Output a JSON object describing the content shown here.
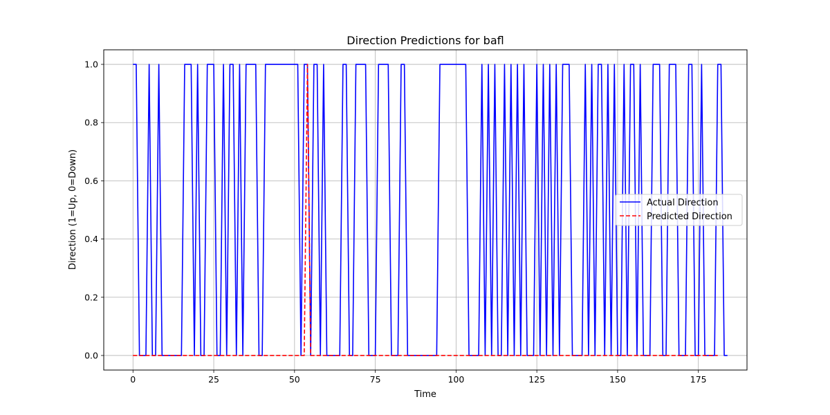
{
  "chart_data": {
    "type": "line",
    "title": "Direction Predictions for bafl",
    "xlabel": "Time",
    "ylabel": "Direction (1=Up, 0=Down)",
    "xlim": [
      -9.05,
      190.05
    ],
    "ylim": [
      -0.05,
      1.05
    ],
    "xticks": [
      0,
      25,
      50,
      75,
      100,
      125,
      150,
      175
    ],
    "yticks": [
      0.0,
      0.2,
      0.4,
      0.6,
      0.8,
      1.0
    ],
    "xtick_labels": [
      "0",
      "25",
      "50",
      "75",
      "100",
      "125",
      "150",
      "175"
    ],
    "ytick_labels": [
      "0.0",
      "0.2",
      "0.4",
      "0.6",
      "0.8",
      "1.0"
    ],
    "grid": true,
    "legend_position": "center-right",
    "series": [
      {
        "name": "Actual Direction",
        "color": "#0000ff",
        "style": "solid",
        "x_start": 0,
        "values": [
          1,
          1,
          0,
          0,
          0,
          1,
          0,
          0,
          1,
          0,
          0,
          0,
          0,
          0,
          0,
          0,
          1,
          1,
          1,
          0,
          1,
          0,
          0,
          1,
          1,
          1,
          0,
          0,
          1,
          0,
          1,
          1,
          0,
          1,
          0,
          1,
          1,
          1,
          1,
          0,
          0,
          1,
          1,
          1,
          1,
          1,
          1,
          1,
          1,
          1,
          1,
          1,
          0,
          1,
          1,
          0,
          1,
          1,
          0,
          1,
          0,
          0,
          0,
          0,
          0,
          1,
          1,
          0,
          0,
          1,
          1,
          1,
          1,
          0,
          0,
          0,
          1,
          1,
          1,
          1,
          0,
          0,
          0,
          1,
          1,
          0,
          0,
          0,
          0,
          0,
          0,
          0,
          0,
          0,
          0,
          1,
          1,
          1,
          1,
          1,
          1,
          1,
          1,
          1,
          0,
          0,
          0,
          0,
          1,
          0,
          1,
          0,
          1,
          0,
          0,
          1,
          0,
          1,
          0,
          1,
          0,
          1,
          0,
          0,
          0,
          1,
          0,
          1,
          0,
          1,
          0,
          1,
          0,
          1,
          1,
          1,
          0,
          0,
          0,
          0,
          1,
          0,
          1,
          0,
          1,
          1,
          0,
          1,
          0,
          1,
          0,
          0,
          1,
          0,
          1,
          1,
          0,
          1,
          0,
          0,
          0,
          1,
          1,
          1,
          0,
          0,
          1,
          1,
          1,
          0,
          0,
          0,
          1,
          1,
          0,
          0,
          1,
          0,
          0,
          0,
          0,
          1,
          1,
          0,
          0
        ]
      },
      {
        "name": "Predicted Direction",
        "color": "#ff0000",
        "style": "dashed",
        "x_start": 0,
        "values": [
          0,
          0,
          0,
          0,
          0,
          0,
          0,
          0,
          0,
          0,
          0,
          0,
          0,
          0,
          0,
          0,
          0,
          0,
          0,
          0,
          0,
          0,
          0,
          0,
          0,
          0,
          0,
          0,
          0,
          0,
          0,
          0,
          0,
          0,
          0,
          0,
          0,
          0,
          0,
          0,
          0,
          0,
          0,
          0,
          0,
          0,
          0,
          0,
          0,
          0,
          0,
          0,
          0,
          0,
          1,
          0,
          0,
          0,
          0,
          0,
          0,
          0,
          0,
          0,
          0,
          0,
          0,
          0,
          0,
          0,
          0,
          0,
          0,
          0,
          0,
          0,
          0,
          0,
          0,
          0,
          0,
          0,
          0,
          0,
          0,
          0,
          0,
          0,
          0,
          0,
          0,
          0,
          0,
          0,
          0,
          0,
          0,
          0,
          0,
          0,
          0,
          0,
          0,
          0,
          0,
          0,
          0,
          0,
          0,
          0,
          0,
          0,
          0,
          0,
          0,
          0,
          0,
          0,
          0,
          0,
          0,
          0,
          0,
          0,
          0,
          0,
          0,
          0,
          0,
          0,
          0,
          0,
          0,
          0,
          0,
          0,
          0,
          0,
          0,
          0,
          0,
          0,
          0,
          0,
          0,
          0,
          0,
          0,
          0,
          0,
          0,
          0,
          0,
          0,
          0,
          0,
          0,
          0,
          0,
          0,
          0,
          0,
          0,
          0,
          0,
          0,
          0,
          0,
          0,
          0,
          0,
          0,
          0,
          0,
          0,
          0,
          0,
          0,
          0,
          0,
          0,
          0
        ]
      }
    ]
  }
}
